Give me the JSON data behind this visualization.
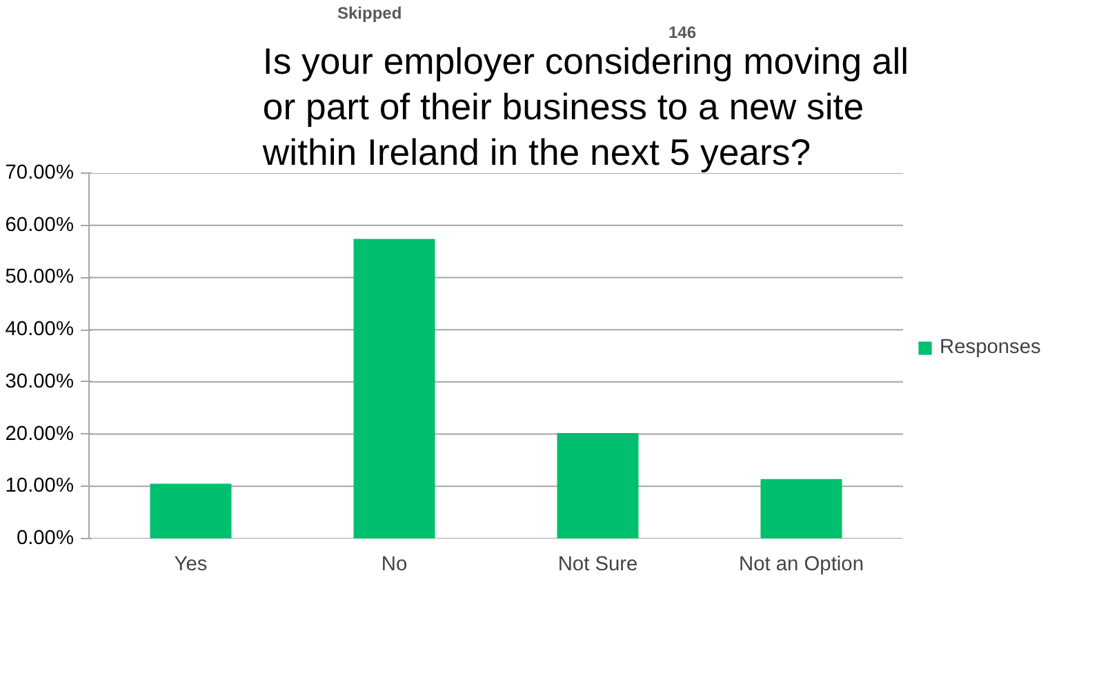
{
  "chart_data": {
    "type": "bar",
    "title": "Is your employer considering moving all or part of their business to a new site within Ireland in the next 5 years?",
    "annotations": [
      "Skipped",
      "146"
    ],
    "categories": [
      "Yes",
      "No",
      "Not Sure",
      "Not an Option"
    ],
    "series": [
      {
        "name": "Responses",
        "color": "#00bf6f",
        "values": [
          10.5,
          57.4,
          20.2,
          11.4
        ]
      }
    ],
    "ylim": [
      0,
      70
    ],
    "yticks": [
      {
        "value": 0,
        "label": "0.00%"
      },
      {
        "value": 10,
        "label": "10.00%"
      },
      {
        "value": 20,
        "label": "20.00%"
      },
      {
        "value": 30,
        "label": "30.00%"
      },
      {
        "value": 40,
        "label": "40.00%"
      },
      {
        "value": 50,
        "label": "50.00%"
      },
      {
        "value": 60,
        "label": "60.00%"
      },
      {
        "value": 70,
        "label": "70.00%"
      }
    ],
    "grid": "y",
    "legend": "right"
  }
}
